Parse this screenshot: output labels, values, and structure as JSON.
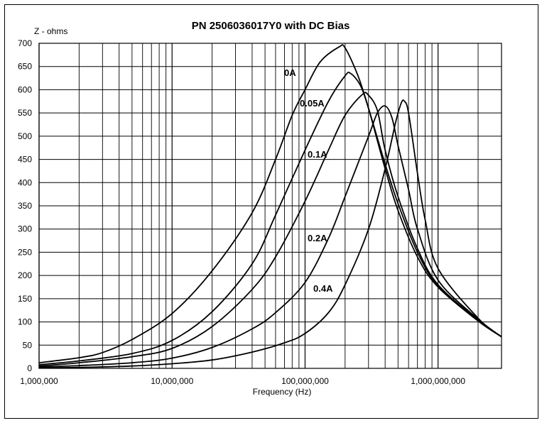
{
  "chart_data": {
    "type": "line",
    "title": "PN 2506036017Y0 with DC Bias",
    "ylabel": "Z - ohms",
    "xlabel": "Frequency (Hz)",
    "x_scale": "log",
    "xlim": [
      1000000,
      3000000000
    ],
    "ylim": [
      0,
      700
    ],
    "grid": true,
    "y_ticks": [
      0,
      50,
      100,
      150,
      200,
      250,
      300,
      350,
      400,
      450,
      500,
      550,
      600,
      650,
      700
    ],
    "x_tick_values": [
      1000000,
      10000000,
      100000000,
      1000000000
    ],
    "x_tick_labels": [
      "1,000,000",
      "10,000,000",
      "100,000,000",
      "1,000,000,000"
    ],
    "series": [
      {
        "name": "0A",
        "points": [
          [
            1000000,
            12
          ],
          [
            2000000,
            23
          ],
          [
            3000000,
            34
          ],
          [
            5000000,
            62
          ],
          [
            10000000,
            118
          ],
          [
            20000000,
            210
          ],
          [
            40000000,
            335
          ],
          [
            60000000,
            450
          ],
          [
            80000000,
            545
          ],
          [
            100000000,
            600
          ],
          [
            130000000,
            660
          ],
          [
            180000000,
            692
          ],
          [
            200000000,
            690
          ],
          [
            250000000,
            630
          ],
          [
            300000000,
            560
          ],
          [
            400000000,
            430
          ],
          [
            500000000,
            340
          ],
          [
            700000000,
            240
          ],
          [
            1000000000,
            175
          ],
          [
            2000000000,
            102
          ],
          [
            3000000000,
            68
          ]
        ]
      },
      {
        "name": "0.05A",
        "points": [
          [
            1000000,
            8
          ],
          [
            2000000,
            16
          ],
          [
            5000000,
            32
          ],
          [
            10000000,
            60
          ],
          [
            20000000,
            122
          ],
          [
            40000000,
            225
          ],
          [
            60000000,
            330
          ],
          [
            100000000,
            470
          ],
          [
            150000000,
            575
          ],
          [
            200000000,
            630
          ],
          [
            220000000,
            635
          ],
          [
            260000000,
            610
          ],
          [
            300000000,
            560
          ],
          [
            400000000,
            440
          ],
          [
            500000000,
            355
          ],
          [
            700000000,
            250
          ],
          [
            1000000000,
            178
          ],
          [
            2000000000,
            103
          ],
          [
            3000000000,
            68
          ]
        ]
      },
      {
        "name": "0.1A",
        "points": [
          [
            1000000,
            5
          ],
          [
            2000000,
            12
          ],
          [
            5000000,
            25
          ],
          [
            10000000,
            43
          ],
          [
            20000000,
            90
          ],
          [
            40000000,
            170
          ],
          [
            60000000,
            240
          ],
          [
            100000000,
            360
          ],
          [
            150000000,
            470
          ],
          [
            200000000,
            545
          ],
          [
            270000000,
            590
          ],
          [
            300000000,
            588
          ],
          [
            350000000,
            555
          ],
          [
            400000000,
            470
          ],
          [
            500000000,
            370
          ],
          [
            700000000,
            258
          ],
          [
            1000000000,
            180
          ],
          [
            2000000000,
            104
          ],
          [
            3000000000,
            68
          ]
        ]
      },
      {
        "name": "0.2A",
        "points": [
          [
            1000000,
            3
          ],
          [
            2000000,
            6
          ],
          [
            5000000,
            12
          ],
          [
            10000000,
            22
          ],
          [
            20000000,
            45
          ],
          [
            40000000,
            85
          ],
          [
            60000000,
            120
          ],
          [
            100000000,
            185
          ],
          [
            150000000,
            280
          ],
          [
            200000000,
            370
          ],
          [
            300000000,
            500
          ],
          [
            350000000,
            550
          ],
          [
            400000000,
            565
          ],
          [
            450000000,
            540
          ],
          [
            500000000,
            480
          ],
          [
            600000000,
            385
          ],
          [
            700000000,
            300
          ],
          [
            1000000000,
            190
          ],
          [
            2000000000,
            106
          ],
          [
            3000000000,
            68
          ]
        ]
      },
      {
        "name": "0.4A",
        "points": [
          [
            1000000,
            1
          ],
          [
            2000000,
            2
          ],
          [
            5000000,
            5
          ],
          [
            10000000,
            10
          ],
          [
            20000000,
            18
          ],
          [
            40000000,
            35
          ],
          [
            70000000,
            55
          ],
          [
            100000000,
            75
          ],
          [
            150000000,
            120
          ],
          [
            200000000,
            180
          ],
          [
            300000000,
            300
          ],
          [
            400000000,
            430
          ],
          [
            480000000,
            530
          ],
          [
            530000000,
            572
          ],
          [
            560000000,
            575
          ],
          [
            600000000,
            550
          ],
          [
            700000000,
            420
          ],
          [
            800000000,
            320
          ],
          [
            1000000000,
            215
          ],
          [
            2000000000,
            108
          ],
          [
            3000000000,
            68
          ]
        ]
      }
    ],
    "annotations": [
      "0A",
      "0.05A",
      "0.1A",
      "0.2A",
      "0.4A"
    ]
  }
}
